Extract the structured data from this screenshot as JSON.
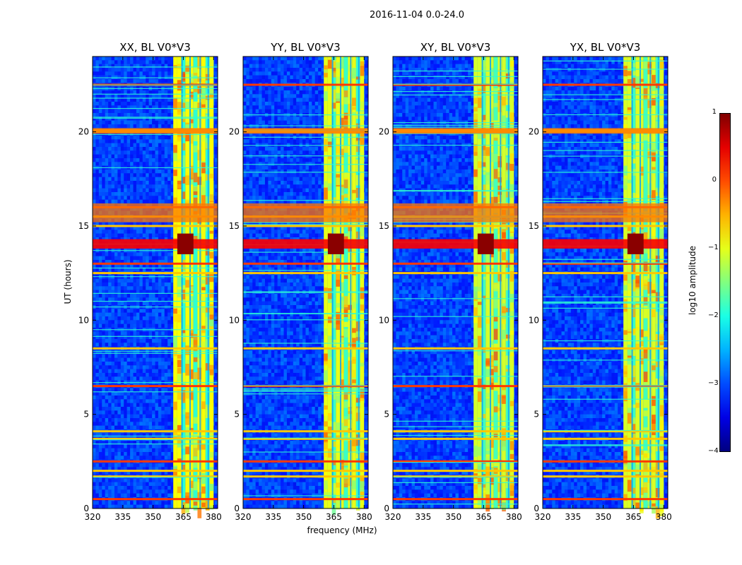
{
  "chart_data": {
    "type": "heatmap",
    "suptitle": "2016-11-04 0.0-24.0",
    "xlabel": "frequency (MHz)",
    "ylabel": "UT (hours)",
    "xlim": [
      320,
      382
    ],
    "ylim": [
      0,
      24
    ],
    "xticks": [
      "320",
      "335",
      "350",
      "365",
      "380"
    ],
    "xtick_values": [
      320,
      335,
      350,
      365,
      380
    ],
    "yticks": [
      "0",
      "5",
      "10",
      "15",
      "20"
    ],
    "ytick_values": [
      0,
      5,
      10,
      15,
      20
    ],
    "panels": [
      {
        "title": "XX, BL V0*V3",
        "band_strength": 1.0
      },
      {
        "title": "YY, BL V0*V3",
        "band_strength": 0.85
      },
      {
        "title": "XY, BL V0*V3",
        "band_strength": 0.7
      },
      {
        "title": "YX, BL V0*V3",
        "band_strength": 0.75
      }
    ],
    "rfi_band_mhz": [
      360,
      380
    ],
    "bright_band_hours": [
      13.8,
      14.3
    ],
    "strong_rows_hours": [
      0.5,
      1.7,
      2.0,
      2.5,
      3.7,
      4.1,
      6.5,
      8.5,
      12.5,
      13.0,
      15.0,
      15.5,
      16.0,
      20.0,
      20.1,
      22.5
    ],
    "colorbar": {
      "label": "log$_{10}$ amplitude",
      "label_text": "log10 amplitude",
      "range": [
        -4,
        1
      ],
      "ticks": [
        "1",
        "0",
        "−1",
        "−2",
        "−3",
        "−4"
      ],
      "tick_values": [
        1,
        0,
        -1,
        -2,
        -3,
        -4
      ],
      "colormap": "jet"
    }
  }
}
